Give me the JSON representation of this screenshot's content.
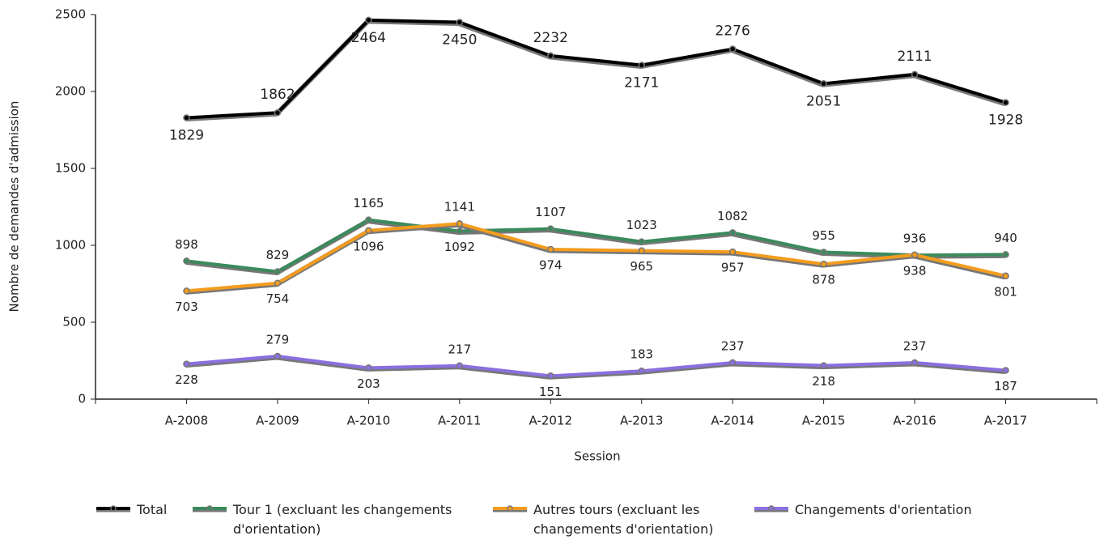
{
  "chart_data": {
    "type": "line",
    "categories": [
      "A-2008",
      "A-2009",
      "A-2010",
      "A-2011",
      "A-2012",
      "A-2013",
      "A-2014",
      "A-2015",
      "A-2016",
      "A-2017"
    ],
    "series": [
      {
        "name": "Total",
        "color": "#000000",
        "values": [
          1829,
          1862,
          2464,
          2450,
          2232,
          2171,
          2276,
          2051,
          2111,
          1928
        ]
      },
      {
        "name": "Tour 1 (excluant les changements d'orientation)",
        "color": "#3b8a5c",
        "values": [
          898,
          829,
          1165,
          1092,
          1107,
          1023,
          1082,
          955,
          936,
          940
        ]
      },
      {
        "name": "Autres tours (excluant les changements d'orientation)",
        "color": "#f39c1e",
        "values": [
          703,
          754,
          1096,
          1141,
          974,
          965,
          957,
          878,
          938,
          801
        ]
      },
      {
        "name": "Changements d'orientation",
        "color": "#8a6fe0",
        "values": [
          228,
          279,
          203,
          217,
          151,
          183,
          237,
          218,
          237,
          187
        ]
      }
    ],
    "ylim": [
      0,
      2500
    ],
    "yticks": [
      0,
      500,
      1000,
      1500,
      2000,
      2500
    ],
    "xlabel": "Session",
    "ylabel": "Nombre de demandes d'admission",
    "grid": false
  }
}
